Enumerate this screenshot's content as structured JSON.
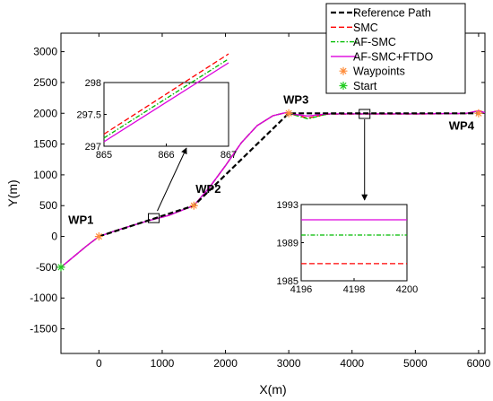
{
  "chart_data": {
    "type": "line",
    "xlabel": "X(m)",
    "ylabel": "Y(m)",
    "xlim": [
      -600,
      6100
    ],
    "ylim": [
      -1900,
      3300
    ],
    "xticks": [
      {
        "v": 0,
        "label": "0"
      },
      {
        "v": 1000,
        "label": "1000"
      },
      {
        "v": 2000,
        "label": "2000"
      },
      {
        "v": 3000,
        "label": "3000"
      },
      {
        "v": 4000,
        "label": "4000"
      },
      {
        "v": 5000,
        "label": "5000"
      },
      {
        "v": 6000,
        "label": "6000"
      }
    ],
    "yticks": [
      {
        "v": -1500,
        "label": "-1500"
      },
      {
        "v": -1000,
        "label": "-1000"
      },
      {
        "v": -500,
        "label": "-500"
      },
      {
        "v": 0,
        "label": "0"
      },
      {
        "v": 500,
        "label": "500"
      },
      {
        "v": 1000,
        "label": "1000"
      },
      {
        "v": 1500,
        "label": "1500"
      },
      {
        "v": 2000,
        "label": "2000"
      },
      {
        "v": 2500,
        "label": "2500"
      },
      {
        "v": 3000,
        "label": "3000"
      }
    ],
    "grid": false,
    "legend_position": "top-right",
    "series": [
      {
        "name": "Reference Path",
        "color": "#000000",
        "style": "dashed",
        "points": [
          [
            0,
            0
          ],
          [
            1500,
            500
          ],
          [
            3000,
            2000
          ],
          [
            6000,
            2000
          ]
        ]
      },
      {
        "name": "SMC",
        "color": "#ff0000",
        "style": "dashed",
        "points": [
          [
            -600,
            -500
          ],
          [
            -400,
            -330
          ],
          [
            -200,
            -160
          ],
          [
            0,
            0
          ],
          [
            250,
            90
          ],
          [
            500,
            170
          ],
          [
            800,
            260
          ],
          [
            1100,
            340
          ],
          [
            1300,
            420
          ],
          [
            1500,
            500
          ],
          [
            1750,
            800
          ],
          [
            2000,
            1150
          ],
          [
            2250,
            1520
          ],
          [
            2500,
            1800
          ],
          [
            2750,
            1960
          ],
          [
            2950,
            2010
          ],
          [
            3150,
            1960
          ],
          [
            3300,
            1920
          ],
          [
            3600,
            1985
          ],
          [
            4000,
            1987
          ],
          [
            5000,
            1987
          ],
          [
            5800,
            1995
          ],
          [
            6000,
            2040
          ],
          [
            6100,
            2010
          ]
        ]
      },
      {
        "name": "AF-SMC",
        "color": "#00bb00",
        "style": "dashdot",
        "points": [
          [
            -600,
            -500
          ],
          [
            -400,
            -330
          ],
          [
            -200,
            -160
          ],
          [
            0,
            0
          ],
          [
            250,
            90
          ],
          [
            500,
            170
          ],
          [
            800,
            260
          ],
          [
            1100,
            340
          ],
          [
            1300,
            420
          ],
          [
            1500,
            500
          ],
          [
            1750,
            800
          ],
          [
            2000,
            1150
          ],
          [
            2250,
            1520
          ],
          [
            2500,
            1800
          ],
          [
            2750,
            1960
          ],
          [
            2950,
            2010
          ],
          [
            3150,
            1955
          ],
          [
            3300,
            1910
          ],
          [
            3600,
            1985
          ],
          [
            4000,
            1990
          ],
          [
            5000,
            1990
          ],
          [
            5800,
            1995
          ],
          [
            6000,
            2040
          ],
          [
            6100,
            2010
          ]
        ]
      },
      {
        "name": "AF-SMC+FTDO",
        "color": "#dd00dd",
        "style": "solid",
        "points": [
          [
            -600,
            -500
          ],
          [
            -400,
            -330
          ],
          [
            -200,
            -160
          ],
          [
            0,
            0
          ],
          [
            250,
            90
          ],
          [
            500,
            170
          ],
          [
            800,
            260
          ],
          [
            1100,
            340
          ],
          [
            1300,
            420
          ],
          [
            1500,
            500
          ],
          [
            1750,
            800
          ],
          [
            2000,
            1150
          ],
          [
            2250,
            1520
          ],
          [
            2500,
            1800
          ],
          [
            2750,
            1960
          ],
          [
            2950,
            2010
          ],
          [
            3150,
            1975
          ],
          [
            3300,
            1955
          ],
          [
            3600,
            1990
          ],
          [
            4000,
            1991
          ],
          [
            5000,
            1991
          ],
          [
            5800,
            1998
          ],
          [
            6000,
            2040
          ],
          [
            6100,
            2010
          ]
        ]
      }
    ],
    "waypoints": {
      "name": "Waypoints",
      "color": "#ff8c3a",
      "points": [
        [
          0,
          0
        ],
        [
          1500,
          500
        ],
        [
          3000,
          2000
        ],
        [
          6000,
          2000
        ]
      ]
    },
    "start": {
      "name": "Start",
      "color": "#22cc22",
      "points": [
        [
          -600,
          -500
        ]
      ]
    },
    "annotations": [
      {
        "text": "WP1",
        "x": 0,
        "y": 0
      },
      {
        "text": "WP2",
        "x": 1500,
        "y": 500
      },
      {
        "text": "WP3",
        "x": 3000,
        "y": 2000
      },
      {
        "text": "WP4",
        "x": 6000,
        "y": 2000
      }
    ],
    "insets": [
      {
        "xlim": [
          865,
          867
        ],
        "ylim": [
          297,
          298
        ],
        "xticks": [
          {
            "v": 865,
            "label": "865"
          },
          {
            "v": 866,
            "label": "866"
          },
          {
            "v": 867,
            "label": "867"
          }
        ],
        "yticks": [
          {
            "v": 297,
            "label": "297"
          },
          {
            "v": 297.5,
            "label": "297.5"
          },
          {
            "v": 298,
            "label": "298"
          }
        ],
        "series": [
          {
            "name": "SMC",
            "points": [
              [
                865,
                297.19
              ],
              [
                867,
                298.45
              ]
            ]
          },
          {
            "name": "AF-SMC",
            "points": [
              [
                865,
                297.13
              ],
              [
                867,
                298.37
              ]
            ]
          },
          {
            "name": "AF-SMC+FTDO",
            "points": [
              [
                865,
                297.07
              ],
              [
                867,
                298.31
              ]
            ]
          }
        ]
      },
      {
        "xlim": [
          4196,
          4200
        ],
        "ylim": [
          1985,
          1993
        ],
        "xticks": [
          {
            "v": 4196,
            "label": "4196"
          },
          {
            "v": 4198,
            "label": "4198"
          },
          {
            "v": 4200,
            "label": "4200"
          }
        ],
        "yticks": [
          {
            "v": 1985,
            "label": "1985"
          },
          {
            "v": 1989,
            "label": "1989"
          },
          {
            "v": 1993,
            "label": "1993"
          }
        ],
        "series": [
          {
            "name": "SMC",
            "points": [
              [
                4196,
                1986.8
              ],
              [
                4200,
                1986.8
              ]
            ]
          },
          {
            "name": "AF-SMC",
            "points": [
              [
                4196,
                1989.8
              ],
              [
                4200,
                1989.8
              ]
            ]
          },
          {
            "name": "AF-SMC+FTDO",
            "points": [
              [
                4196,
                1991.4
              ],
              [
                4200,
                1991.4
              ]
            ]
          }
        ]
      }
    ]
  }
}
